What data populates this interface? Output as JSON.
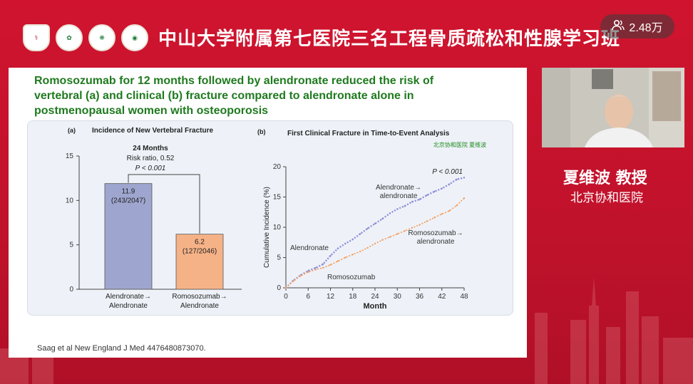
{
  "header": {
    "title": "中山大学附属第七医院三名工程骨质疏松和性腺学习班",
    "logos": [
      "hospital-logo-1",
      "hospital-logo-2",
      "hospital-logo-3",
      "hospital-logo-4"
    ],
    "viewer_count": "2.48万"
  },
  "slide": {
    "title": "Romosozumab for 12 months followed by alendronate reduced the risk of vertebral (a) and clinical (b) fracture compared to alendronate alone in postmenopausal women with osteoporosis",
    "citation": "Saag et al New England J Med 4476480873070.",
    "watermark": "北京协和医院 夏维波"
  },
  "speaker": {
    "name": "夏维波 教授",
    "org": "北京协和医院"
  },
  "chart_data": [
    {
      "type": "bar",
      "panel_label": "(a)",
      "title": "Incidence of New Vertebral Fracture",
      "categories": [
        "Alendronate→\nAlendronate",
        "Romosozumab→\nAlendronate"
      ],
      "category_line1": [
        "Alendronate→",
        "Romosozumab→"
      ],
      "category_line2": [
        "Alendronate",
        "Alendronate"
      ],
      "values": [
        11.9,
        6.2
      ],
      "value_labels": [
        "11.9",
        "6.2"
      ],
      "count_labels": [
        "(243/2047)",
        "(127/2046)"
      ],
      "colors": [
        "#9ea6cf",
        "#f6b287"
      ],
      "ylim": [
        0,
        15
      ],
      "yticks": [
        0,
        5,
        10,
        15
      ],
      "annotation": {
        "line1": "24 Months",
        "line2": "Risk ratio, 0.52",
        "line3": "P < 0.001"
      }
    },
    {
      "type": "line",
      "panel_label": "(b)",
      "title": "First Clinical Fracture in Time-to-Event Analysis",
      "xlabel": "Month",
      "ylabel": "Cumulative Incidence (%)",
      "xlim": [
        0,
        48
      ],
      "ylim": [
        0,
        20
      ],
      "xticks": [
        0,
        6,
        12,
        18,
        24,
        30,
        36,
        42,
        48
      ],
      "yticks": [
        0,
        5,
        10,
        15,
        20
      ],
      "pvalue": "P < 0.001",
      "series": [
        {
          "name": "Alendronate→ alendronate",
          "color": "#8f8fd8",
          "x": [
            0,
            2,
            4,
            6,
            8,
            10,
            12,
            14,
            16,
            18,
            20,
            22,
            24,
            26,
            28,
            30,
            32,
            34,
            36,
            38,
            40,
            42,
            44,
            46,
            48
          ],
          "y": [
            0,
            1.2,
            2.1,
            2.8,
            3.3,
            3.9,
            5.3,
            6.5,
            7.3,
            8.0,
            8.9,
            9.8,
            10.6,
            11.4,
            12.3,
            13.0,
            13.5,
            14.2,
            14.6,
            15.3,
            15.9,
            16.4,
            17.1,
            17.9,
            18.2
          ]
        },
        {
          "name": "Romosozumab→ alendronate",
          "color": "#f2a36b",
          "x": [
            0,
            2,
            4,
            6,
            8,
            10,
            12,
            14,
            16,
            18,
            20,
            22,
            24,
            26,
            28,
            30,
            32,
            34,
            36,
            38,
            40,
            42,
            44,
            46,
            48
          ],
          "y": [
            0,
            1.1,
            2.0,
            2.6,
            3.0,
            3.3,
            3.8,
            4.4,
            5.0,
            5.5,
            6.0,
            6.6,
            7.3,
            7.9,
            8.4,
            8.9,
            9.4,
            9.9,
            10.4,
            11.0,
            11.6,
            12.2,
            12.7,
            13.6,
            14.8
          ]
        }
      ],
      "annotations": {
        "alendronate_upper": [
          "Alendronate→",
          "alendronate"
        ],
        "romosozumab_right": [
          "Romosozumab→",
          "alendronate"
        ],
        "alendronate_inner": "Alendronate",
        "romosozumab_inner": "Romosozumab"
      }
    }
  ]
}
